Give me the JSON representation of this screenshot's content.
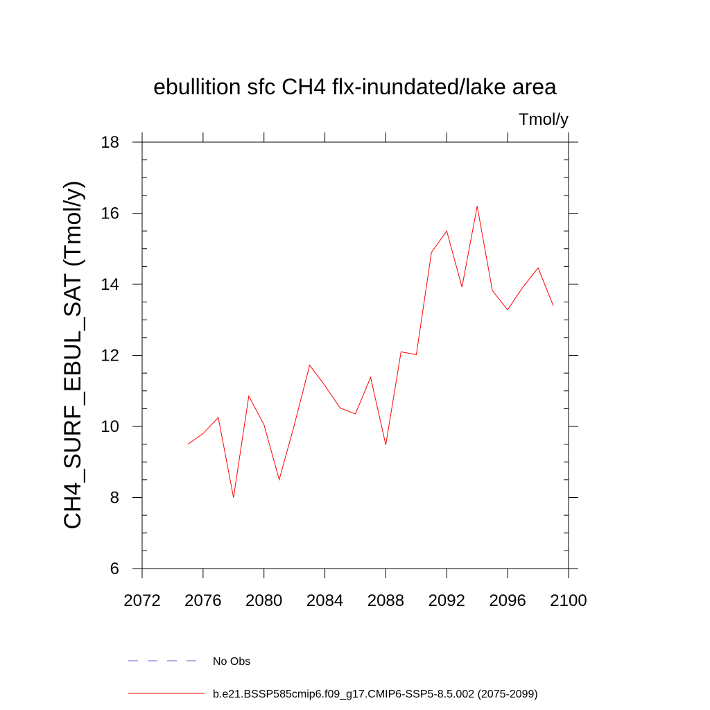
{
  "chart_data": {
    "type": "line",
    "title": "ebullition sfc CH4 flx-inundated/lake area",
    "units_label": "Tmol/y",
    "xlabel": "",
    "ylabel": "CH4_SURF_EBUL_SAT  (Tmol/y)",
    "xlim": [
      2072,
      2100
    ],
    "ylim": [
      6,
      18
    ],
    "x_ticks": [
      2072,
      2076,
      2080,
      2084,
      2088,
      2092,
      2096,
      2100
    ],
    "y_ticks": [
      6,
      8,
      10,
      12,
      14,
      16,
      18
    ],
    "grid": false,
    "legend_position": "bottom",
    "series": [
      {
        "name": "b.e21.BSSP585cmip6.f09_g17.CMIP6-SSP5-8.5.002 (2075-2099)",
        "color": "#ff0000",
        "style": "solid",
        "x": [
          2075,
          2076,
          2077,
          2078,
          2079,
          2080,
          2081,
          2082,
          2083,
          2084,
          2085,
          2086,
          2087,
          2088,
          2089,
          2090,
          2091,
          2092,
          2093,
          2094,
          2095,
          2096,
          2097,
          2098,
          2099
        ],
        "y": [
          9.5,
          9.8,
          10.25,
          8.0,
          10.85,
          10.05,
          8.5,
          10.05,
          11.72,
          11.15,
          10.52,
          10.35,
          11.38,
          9.48,
          12.1,
          12.02,
          14.9,
          15.5,
          13.92,
          16.2,
          13.82,
          13.28,
          13.92,
          14.46,
          13.4
        ]
      },
      {
        "name": "No Obs",
        "color": "#6a5acd",
        "style": "dashed",
        "x": [],
        "y": []
      }
    ]
  }
}
